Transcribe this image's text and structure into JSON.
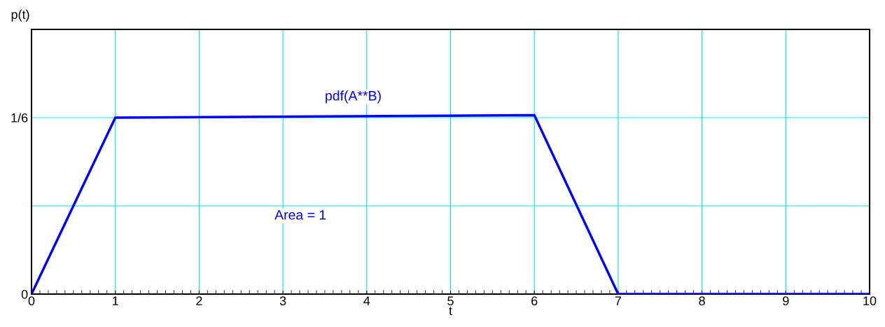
{
  "chart_data": {
    "type": "line",
    "xlabel": "t",
    "ylabel": "p(t)",
    "x": [
      0,
      1,
      6,
      7,
      10
    ],
    "series": [
      {
        "color": "#0000ff",
        "values": [
          0,
          0.1667,
          0.169,
          0,
          0
        ]
      }
    ],
    "xlim": [
      0,
      10
    ],
    "xticks": [
      0,
      1,
      2,
      3,
      4,
      5,
      6,
      7,
      8,
      9,
      10
    ],
    "ylim": [
      0,
      0.25
    ],
    "yticks": [
      {
        "value": 0,
        "label": "0"
      },
      {
        "value": 0.0833,
        "label": null
      },
      {
        "value": 0.1667,
        "label": "1/6"
      }
    ],
    "grid": true,
    "legend": false,
    "marker": "none",
    "line_style": "solid",
    "annotations": [
      "pdf(A**B)",
      "Area = 1"
    ]
  }
}
